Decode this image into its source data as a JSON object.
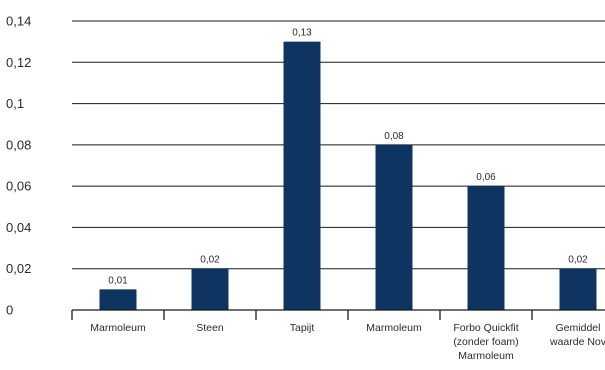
{
  "chart_data": {
    "type": "bar",
    "title": "",
    "xlabel": "",
    "ylabel": "",
    "ylim": [
      0,
      0.14
    ],
    "yticks": [
      0,
      0.02,
      0.04,
      0.06,
      0.08,
      0.1,
      0.12,
      0.14
    ],
    "ytick_labels": [
      "0",
      "0,02",
      "0,04",
      "0,06",
      "0,08",
      "0,1",
      "0,12",
      "0,14"
    ],
    "grid": true,
    "bar_color": "#0e3561",
    "categories": [
      [
        "Marmoleum"
      ],
      [
        "Steen"
      ],
      [
        "Tapijt"
      ],
      [
        "Marmoleum"
      ],
      [
        "Forbo Quickfit",
        "(zonder foam)",
        "Marmoleum"
      ],
      [
        "Gemiddel",
        "waarde Nov"
      ]
    ],
    "values": [
      0.01,
      0.02,
      0.13,
      0.08,
      0.06,
      0.02
    ],
    "data_labels": [
      "0,01",
      "0,02",
      "0,13",
      "0,08",
      "0,06",
      "0,02"
    ]
  }
}
